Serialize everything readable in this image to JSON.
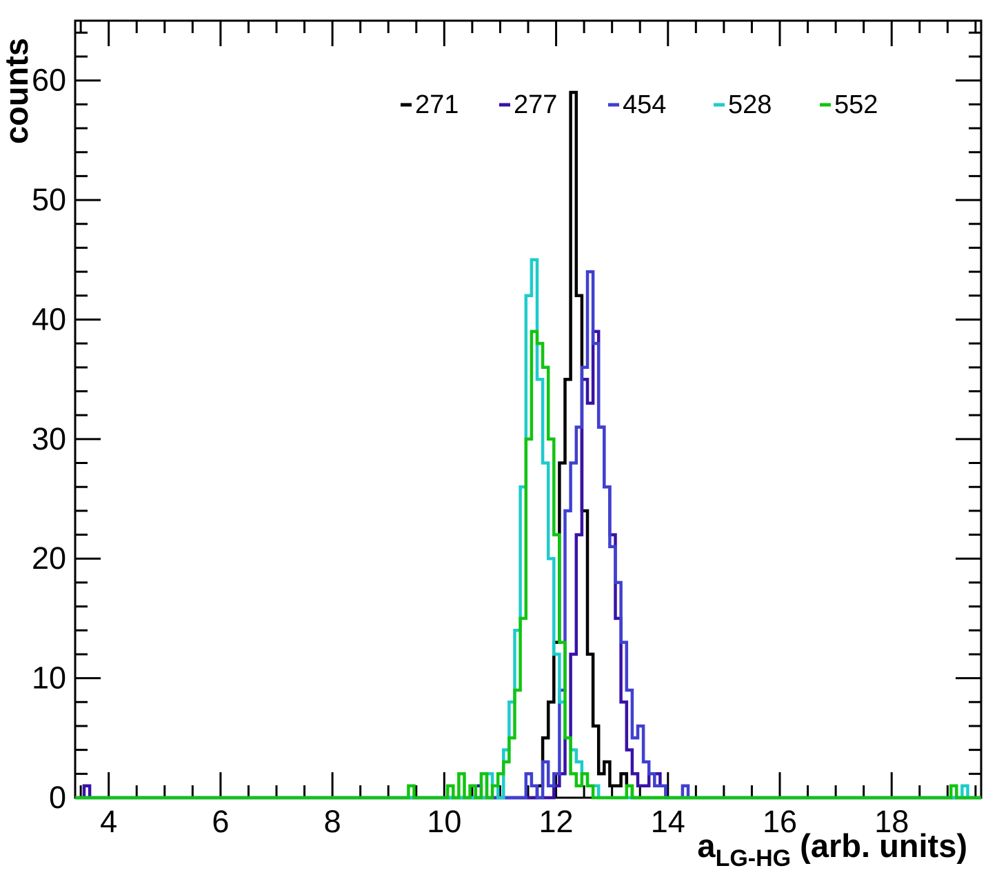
{
  "chart_data": {
    "type": "histogram-step",
    "title": "",
    "ylabel": "counts",
    "xlabel_parts": [
      "a",
      "LG-HG",
      " (arb. units)"
    ],
    "xlim": [
      3.4,
      19.6
    ],
    "ylim": [
      0,
      65
    ],
    "bin_width": 0.1,
    "x_major_ticks": [
      4,
      6,
      8,
      10,
      12,
      14,
      16,
      18
    ],
    "x_minor_step": 0.5,
    "y_major_ticks": [
      0,
      10,
      20,
      30,
      40,
      50,
      60
    ],
    "y_minor_step": 2,
    "grid": false,
    "legend_position": "top-center",
    "frame_color": "#000000",
    "background": "#ffffff",
    "legend": {
      "entries": [
        "271",
        "277",
        "454",
        "528",
        "552"
      ]
    },
    "series": [
      {
        "name": "271",
        "color": "#000000",
        "bins": [
          [
            11.66,
            1
          ],
          [
            11.76,
            5
          ],
          [
            11.86,
            8
          ],
          [
            11.96,
            13
          ],
          [
            12.06,
            28
          ],
          [
            12.16,
            35
          ],
          [
            12.26,
            59
          ],
          [
            12.36,
            42
          ],
          [
            12.46,
            24
          ],
          [
            12.56,
            12
          ],
          [
            12.66,
            6
          ],
          [
            12.76,
            2
          ],
          [
            12.86,
            3
          ],
          [
            12.96,
            1
          ],
          [
            13.06,
            1
          ],
          [
            13.16,
            2
          ],
          [
            13.26,
            1
          ]
        ]
      },
      {
        "name": "277",
        "color": "#3813a6",
        "bins": [
          [
            3.56,
            1
          ],
          [
            10.56,
            1
          ],
          [
            11.96,
            1
          ],
          [
            12.06,
            2
          ],
          [
            12.16,
            5
          ],
          [
            12.26,
            12
          ],
          [
            12.36,
            22
          ],
          [
            12.46,
            35
          ],
          [
            12.56,
            33
          ],
          [
            12.66,
            39
          ],
          [
            12.76,
            31
          ],
          [
            12.86,
            26
          ],
          [
            12.96,
            22
          ],
          [
            13.06,
            15
          ],
          [
            13.16,
            8
          ],
          [
            13.26,
            4
          ],
          [
            13.36,
            2
          ],
          [
            13.46,
            1
          ],
          [
            13.56,
            1
          ],
          [
            13.66,
            2
          ],
          [
            13.76,
            2
          ],
          [
            13.86,
            1
          ]
        ]
      },
      {
        "name": "454",
        "color": "#4040cf",
        "bins": [
          [
            11.46,
            2
          ],
          [
            11.56,
            1
          ],
          [
            11.76,
            3
          ],
          [
            11.86,
            1
          ],
          [
            11.96,
            2
          ],
          [
            12.06,
            9
          ],
          [
            12.16,
            24
          ],
          [
            12.26,
            28
          ],
          [
            12.36,
            31
          ],
          [
            12.46,
            36
          ],
          [
            12.56,
            44
          ],
          [
            12.66,
            38
          ],
          [
            12.76,
            31
          ],
          [
            12.86,
            26
          ],
          [
            12.96,
            21
          ],
          [
            13.06,
            18
          ],
          [
            13.16,
            13
          ],
          [
            13.26,
            9
          ],
          [
            13.36,
            5
          ],
          [
            13.46,
            6
          ],
          [
            13.56,
            3
          ],
          [
            13.66,
            2
          ],
          [
            13.76,
            1
          ],
          [
            13.86,
            1
          ],
          [
            14.26,
            1
          ]
        ]
      },
      {
        "name": "528",
        "color": "#1ecbcb",
        "bins": [
          [
            10.76,
            2
          ],
          [
            10.86,
            1
          ],
          [
            11.06,
            4
          ],
          [
            11.16,
            8
          ],
          [
            11.26,
            14
          ],
          [
            11.36,
            26
          ],
          [
            11.46,
            42
          ],
          [
            11.56,
            45
          ],
          [
            11.66,
            35
          ],
          [
            11.76,
            28
          ],
          [
            11.86,
            20
          ],
          [
            11.96,
            12
          ],
          [
            12.06,
            8
          ],
          [
            12.16,
            5
          ],
          [
            12.26,
            4
          ],
          [
            12.36,
            3
          ],
          [
            12.46,
            2
          ],
          [
            12.56,
            1
          ],
          [
            12.66,
            1
          ],
          [
            19.26,
            1
          ]
        ]
      },
      {
        "name": "552",
        "color": "#12c412",
        "bins": [
          [
            9.36,
            1
          ],
          [
            10.06,
            1
          ],
          [
            10.26,
            2
          ],
          [
            10.46,
            1
          ],
          [
            10.66,
            2
          ],
          [
            10.86,
            1
          ],
          [
            10.96,
            2
          ],
          [
            11.06,
            3
          ],
          [
            11.16,
            5
          ],
          [
            11.26,
            9
          ],
          [
            11.36,
            15
          ],
          [
            11.46,
            30
          ],
          [
            11.56,
            39
          ],
          [
            11.66,
            38
          ],
          [
            11.76,
            36
          ],
          [
            11.86,
            30
          ],
          [
            11.96,
            22
          ],
          [
            12.06,
            13
          ],
          [
            12.16,
            5
          ],
          [
            12.26,
            2
          ],
          [
            12.36,
            1
          ],
          [
            12.46,
            2
          ],
          [
            12.56,
            1
          ],
          [
            13.26,
            1
          ],
          [
            19.06,
            1
          ]
        ]
      }
    ]
  }
}
